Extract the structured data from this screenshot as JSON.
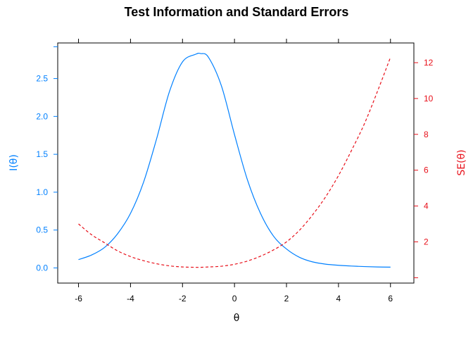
{
  "chart_data": {
    "type": "line",
    "title": "Test Information and Standard Errors",
    "xlabel": "θ",
    "ylabel_left": "I(θ)",
    "ylabel_right": "SE(θ)",
    "xlim": [
      -6.8,
      6.9
    ],
    "ylim_left": [
      -0.2,
      2.97
    ],
    "ylim_right": [
      -0.3,
      13.1
    ],
    "x_ticks": [
      -6,
      -4,
      -2,
      0,
      2,
      4,
      6
    ],
    "y_ticks_left": [
      0.0,
      0.5,
      1.0,
      1.5,
      2.0,
      2.5
    ],
    "y_tick_labels_left": [
      "0.0",
      "0.5",
      "1.0",
      "1.5",
      "2.0",
      "2.5"
    ],
    "y_ticks_right": [
      2,
      4,
      6,
      8,
      10,
      12
    ],
    "grid": false,
    "x": [
      -6,
      -5.5,
      -5,
      -4.5,
      -4,
      -3.5,
      -3,
      -2.5,
      -2,
      -1.5,
      -1.3,
      -1,
      -0.5,
      0,
      0.5,
      1,
      1.5,
      2,
      2.5,
      3,
      3.5,
      4,
      4.5,
      5,
      5.5,
      6
    ],
    "series": [
      {
        "axis": "left",
        "color": "#0080ff",
        "dash": "solid",
        "values": [
          0.11,
          0.17,
          0.27,
          0.45,
          0.72,
          1.13,
          1.7,
          2.33,
          2.72,
          2.82,
          2.83,
          2.78,
          2.4,
          1.76,
          1.16,
          0.72,
          0.42,
          0.25,
          0.14,
          0.08,
          0.05,
          0.035,
          0.025,
          0.018,
          0.013,
          0.01
        ]
      },
      {
        "axis": "right",
        "color": "#e8101a",
        "dash": "dashed",
        "values": [
          3.0,
          2.4,
          1.95,
          1.5,
          1.18,
          0.95,
          0.78,
          0.66,
          0.6,
          0.58,
          0.58,
          0.6,
          0.64,
          0.75,
          0.93,
          1.2,
          1.55,
          2.0,
          2.65,
          3.5,
          4.5,
          5.7,
          7.1,
          8.6,
          10.4,
          12.3
        ]
      }
    ]
  }
}
